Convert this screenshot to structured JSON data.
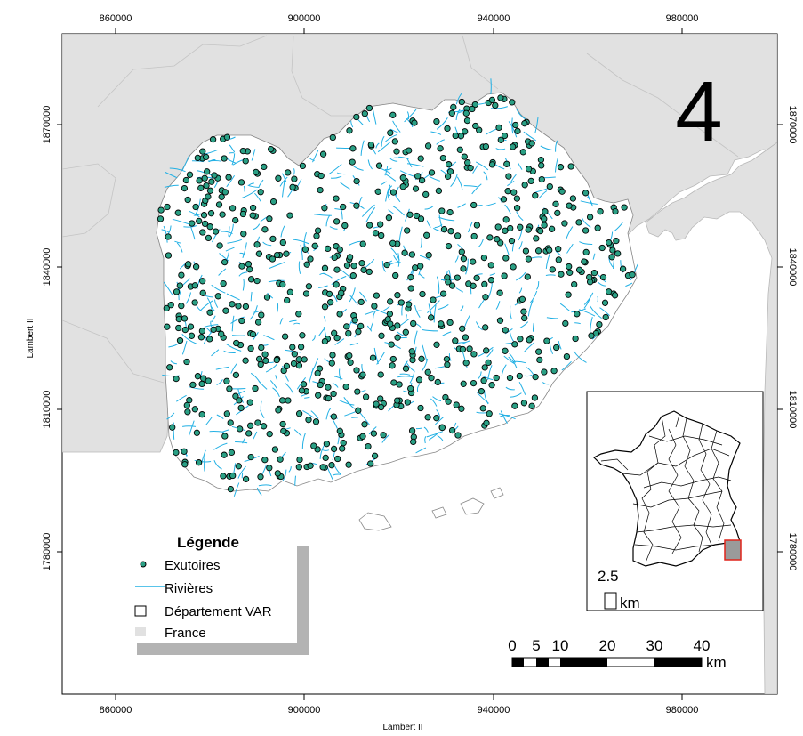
{
  "map": {
    "number": "4",
    "x_ticks": [
      "860000",
      "900000",
      "940000",
      "980000"
    ],
    "y_ticks": [
      "1870000",
      "1840000",
      "1810000",
      "1780000"
    ],
    "x_axis_title": "Lambert II",
    "y_axis_title": "Lambert II",
    "colors": {
      "france": "#e1e1e1",
      "departement": "#ffffff",
      "rivers": "#22b0e4",
      "outlets": "#2aa085",
      "inset_highlight": "#e0241b"
    }
  },
  "legend": {
    "title": "Légende",
    "items": [
      {
        "label": "Exutoires",
        "symbol": "point-icon"
      },
      {
        "label": "Rivières",
        "symbol": "line-icon"
      },
      {
        "label": "Département VAR",
        "symbol": "outline-box-icon"
      },
      {
        "label": "France",
        "symbol": "filled-box-icon"
      }
    ]
  },
  "scalebar": {
    "labels": [
      "0",
      "5",
      "10",
      "20",
      "30",
      "40"
    ],
    "unit": "km"
  },
  "inset": {
    "scale_value": "2.5",
    "unit": "km"
  }
}
